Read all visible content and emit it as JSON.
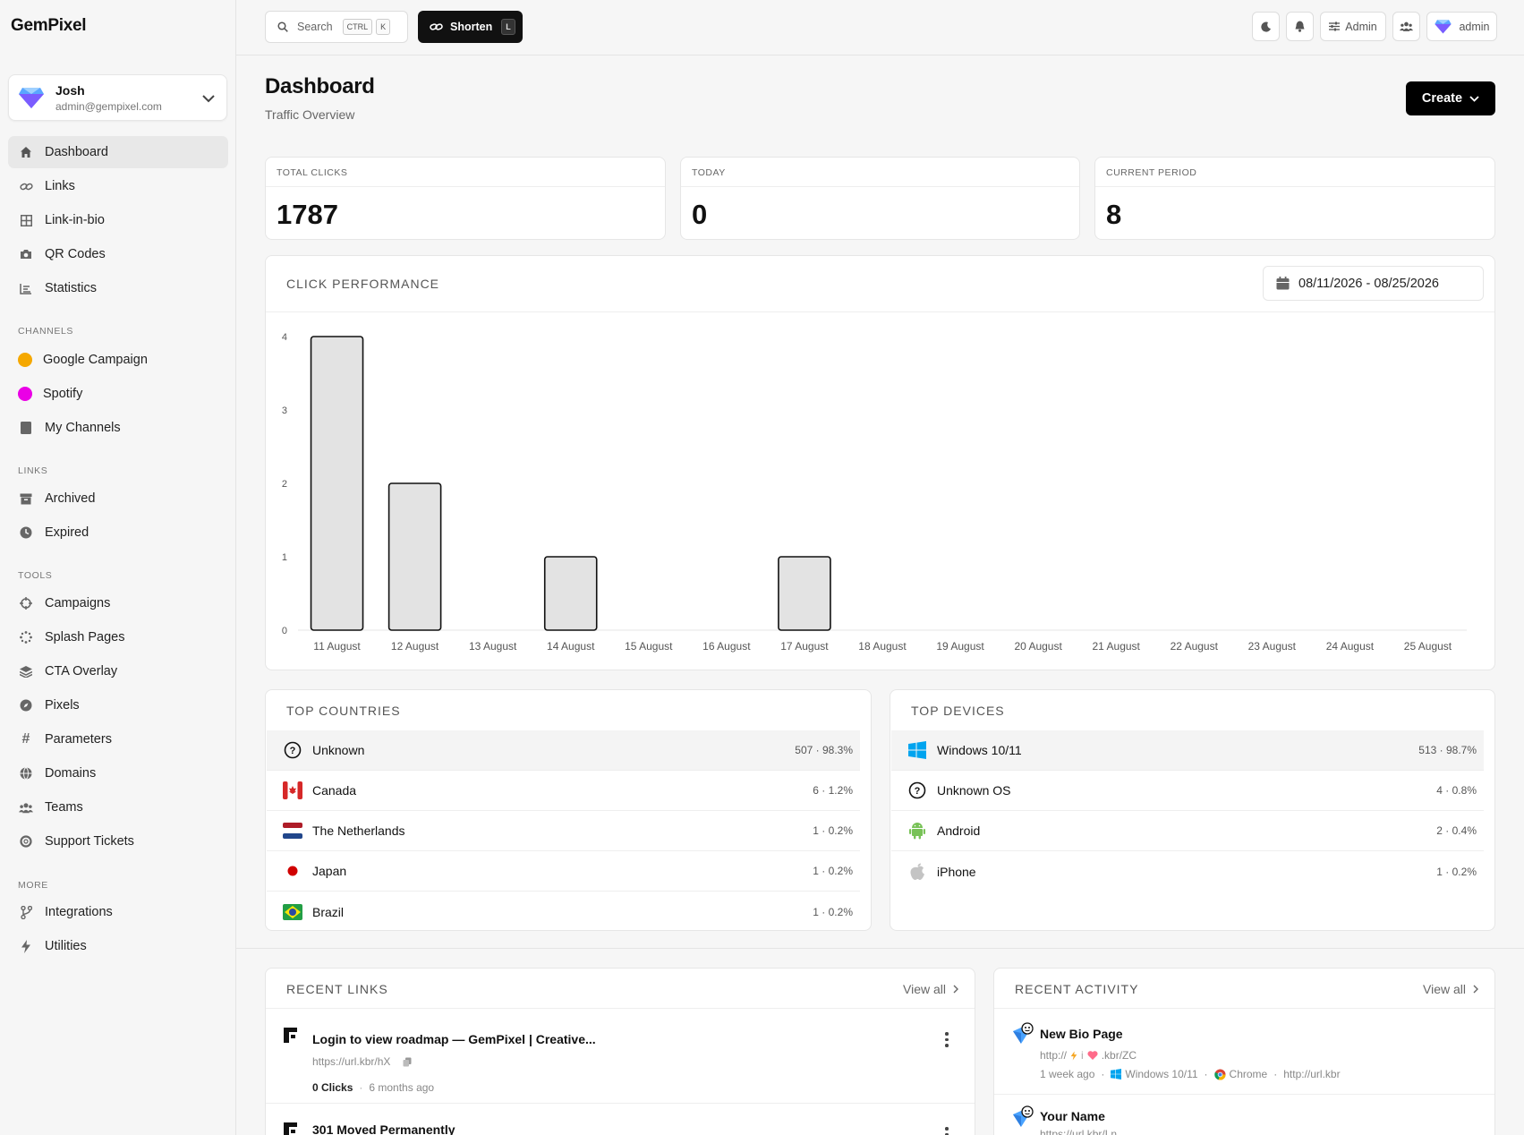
{
  "app": {
    "logo": "GemPixel"
  },
  "user": {
    "name": "Josh",
    "email": "admin@gempixel.com"
  },
  "nav": {
    "main": [
      {
        "label": "Dashboard",
        "icon": "home-icon",
        "active": true
      },
      {
        "label": "Links",
        "icon": "link-icon"
      },
      {
        "label": "Link-in-bio",
        "icon": "grid-icon"
      },
      {
        "label": "QR Codes",
        "icon": "camera-icon"
      },
      {
        "label": "Statistics",
        "icon": "chart-icon"
      }
    ],
    "channels_label": "CHANNELS",
    "channels": [
      {
        "label": "Google Campaign",
        "color": "#f5a800"
      },
      {
        "label": "Spotify",
        "color": "#ea00e6"
      },
      {
        "label": "My Channels",
        "icon": "folder-icon"
      }
    ],
    "links_label": "LINKS",
    "links": [
      {
        "label": "Archived",
        "icon": "archive-icon"
      },
      {
        "label": "Expired",
        "icon": "clock-icon"
      }
    ],
    "tools_label": "TOOLS",
    "tools": [
      {
        "label": "Campaigns",
        "icon": "crosshair-icon"
      },
      {
        "label": "Splash Pages",
        "icon": "spinner-icon"
      },
      {
        "label": "CTA Overlay",
        "icon": "layers-icon"
      },
      {
        "label": "Pixels",
        "icon": "compass-icon"
      },
      {
        "label": "Parameters",
        "icon": "hash-icon"
      },
      {
        "label": "Domains",
        "icon": "globe-icon"
      },
      {
        "label": "Teams",
        "icon": "users-icon"
      },
      {
        "label": "Support Tickets",
        "icon": "lifebuoy-icon"
      }
    ],
    "more_label": "MORE",
    "more": [
      {
        "label": "Integrations",
        "icon": "branch-icon"
      },
      {
        "label": "Utilities",
        "icon": "bolt-icon"
      }
    ]
  },
  "topbar": {
    "search_label": "Search",
    "search_kbd1": "CTRL",
    "search_kbd2": "K",
    "shorten_label": "Shorten",
    "shorten_kbd": "L",
    "admin_label": "Admin",
    "account_label": "admin"
  },
  "header": {
    "title": "Dashboard",
    "subtitle": "Traffic Overview",
    "create_label": "Create"
  },
  "stats": [
    {
      "label": "TOTAL CLICKS",
      "value": "1787"
    },
    {
      "label": "TODAY",
      "value": "0"
    },
    {
      "label": "CURRENT PERIOD",
      "value": "8"
    }
  ],
  "chart_card": {
    "title": "CLICK PERFORMANCE",
    "date_range": "08/11/2026 - 08/25/2026"
  },
  "chart_data": {
    "type": "bar",
    "categories": [
      "11 August",
      "12 August",
      "13 August",
      "14 August",
      "15 August",
      "16 August",
      "17 August",
      "18 August",
      "19 August",
      "20 August",
      "21 August",
      "22 August",
      "23 August",
      "24 August",
      "25 August"
    ],
    "values": [
      4,
      2,
      0,
      1,
      0,
      0,
      1,
      0,
      0,
      0,
      0,
      0,
      0,
      0,
      0
    ],
    "yticks": [
      "0",
      "1",
      "2",
      "3",
      "4"
    ],
    "ylim": [
      0,
      4
    ],
    "title": "",
    "xlabel": "",
    "ylabel": "",
    "bar_color": "#e3e3e3",
    "bar_stroke": "#111111"
  },
  "countries": {
    "title": "TOP COUNTRIES",
    "rows": [
      {
        "name": "Unknown",
        "count": "507 · 98.3%",
        "flag": "question-icon"
      },
      {
        "name": "Canada",
        "count": "6 · 1.2%",
        "flag": "canada-flag-icon"
      },
      {
        "name": "The Netherlands",
        "count": "1 · 0.2%",
        "flag": "netherlands-flag-icon"
      },
      {
        "name": "Japan",
        "count": "1 · 0.2%",
        "flag": "japan-flag-icon"
      },
      {
        "name": "Brazil",
        "count": "1 · 0.2%",
        "flag": "brazil-flag-icon"
      }
    ]
  },
  "devices": {
    "title": "TOP DEVICES",
    "rows": [
      {
        "name": "Windows 10/11",
        "count": "513 · 98.7%",
        "icon": "windows-icon"
      },
      {
        "name": "Unknown OS",
        "count": "4 · 0.8%",
        "icon": "question-icon"
      },
      {
        "name": "Android",
        "count": "2 · 0.4%",
        "icon": "android-icon"
      },
      {
        "name": "iPhone",
        "count": "1 · 0.2%",
        "icon": "apple-icon"
      }
    ]
  },
  "recent_links": {
    "title": "RECENT LINKS",
    "view_all": "View all",
    "items": [
      {
        "title": "Login to view roadmap — GemPixel | Creative...",
        "url": "https://url.kbr/hX",
        "clicks": "0 Clicks",
        "time": "6 months ago"
      },
      {
        "title": "301 Moved Permanently"
      }
    ]
  },
  "recent_activity": {
    "title": "RECENT ACTIVITY",
    "view_all": "View all",
    "items": [
      {
        "title": "New Bio Page",
        "url_prefix": "http://",
        "url_suffix": ".kbr/ZC",
        "time": "1 week ago",
        "os": "Windows 10/11",
        "browser": "Chrome",
        "referrer": "http://url.kbr"
      },
      {
        "title": "Your Name",
        "url": "https://url.kbr/Ln"
      }
    ]
  }
}
